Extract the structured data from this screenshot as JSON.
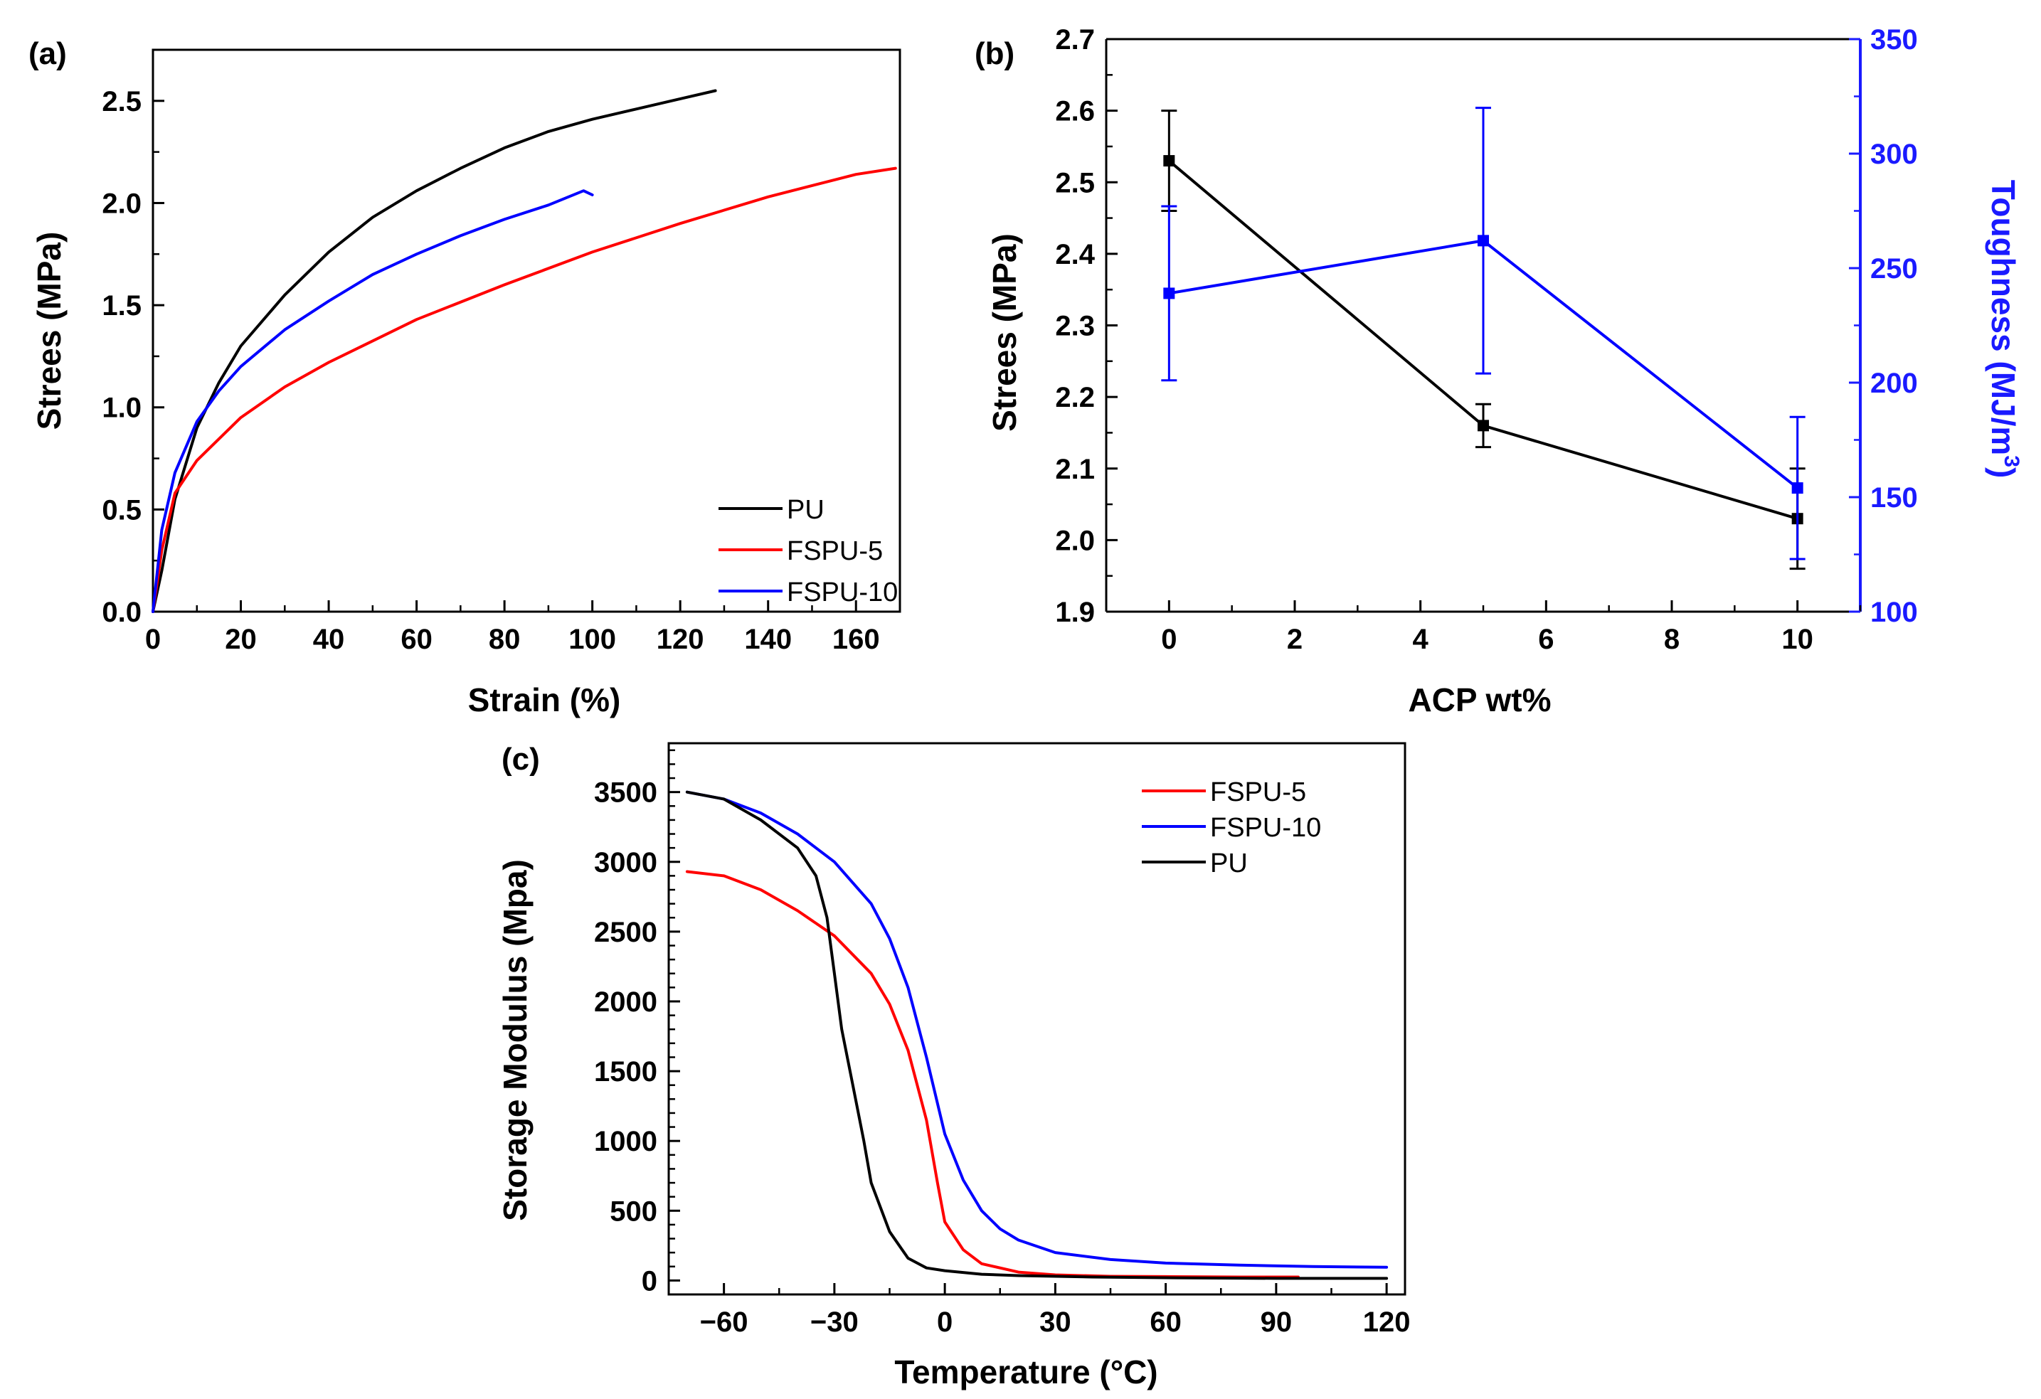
{
  "colors": {
    "pu": "#000000",
    "fspu5": "#ff0000",
    "fspu10": "#0000ff",
    "axis": "#000000",
    "accent_right": "#1a1aff"
  },
  "chart_data": [
    {
      "panel": "(a)",
      "type": "line",
      "xlabel": "Strain (%)",
      "ylabel": "Strees (MPa)",
      "xlim": [
        0,
        170
      ],
      "ylim": [
        0,
        2.75
      ],
      "xticks": [
        0,
        20,
        40,
        60,
        80,
        100,
        120,
        140,
        160
      ],
      "yticks": [
        0.0,
        0.5,
        1.0,
        1.5,
        2.0,
        2.5
      ],
      "ytick_labels": [
        "0.0",
        "0.5",
        "1.0",
        "1.5",
        "2.0",
        "2.5"
      ],
      "legend_position": "bottom-right",
      "series": [
        {
          "name": "PU",
          "color": "#000000",
          "x": [
            0,
            2,
            5,
            10,
            15,
            20,
            30,
            40,
            50,
            60,
            70,
            80,
            90,
            100,
            110,
            120,
            128
          ],
          "y": [
            0,
            0.2,
            0.55,
            0.9,
            1.12,
            1.3,
            1.55,
            1.76,
            1.93,
            2.06,
            2.17,
            2.27,
            2.35,
            2.41,
            2.46,
            2.51,
            2.55
          ]
        },
        {
          "name": "FSPU-5",
          "color": "#ff0000",
          "x": [
            0,
            2,
            5,
            10,
            20,
            30,
            40,
            60,
            80,
            100,
            120,
            140,
            160,
            169
          ],
          "y": [
            0,
            0.3,
            0.58,
            0.74,
            0.95,
            1.1,
            1.22,
            1.43,
            1.6,
            1.76,
            1.9,
            2.03,
            2.14,
            2.17
          ]
        },
        {
          "name": "FSPU-10",
          "color": "#0000ff",
          "x": [
            0,
            2,
            5,
            10,
            15,
            20,
            30,
            40,
            50,
            60,
            70,
            80,
            90,
            98,
            100
          ],
          "y": [
            0,
            0.4,
            0.68,
            0.93,
            1.08,
            1.2,
            1.38,
            1.52,
            1.65,
            1.75,
            1.84,
            1.92,
            1.99,
            2.06,
            2.04
          ]
        }
      ],
      "legend": [
        "PU",
        "FSPU-5",
        "FSPU-10"
      ]
    },
    {
      "panel": "(b)",
      "type": "line",
      "xlabel": "ACP wt%",
      "ylabel": "Strees (MPa)",
      "ylabel_right": "Toughness (MJ/m",
      "ylabel_right_sup": "3",
      "ylabel_right_end": ")",
      "xlim": [
        -1,
        11
      ],
      "ylim": [
        1.9,
        2.7
      ],
      "ylim_right": [
        100,
        350
      ],
      "xticks": [
        0,
        2,
        4,
        6,
        8,
        10
      ],
      "yticks": [
        1.9,
        2.0,
        2.1,
        2.2,
        2.3,
        2.4,
        2.5,
        2.6,
        2.7
      ],
      "ytick_labels": [
        "1.9",
        "2.0",
        "2.1",
        "2.2",
        "2.3",
        "2.4",
        "2.5",
        "2.6",
        "2.7"
      ],
      "yticks_right": [
        100,
        150,
        200,
        250,
        300,
        350
      ],
      "series": [
        {
          "name": "Strees",
          "axis": "left",
          "color": "#000000",
          "x": [
            0,
            5,
            10
          ],
          "y": [
            2.53,
            2.16,
            2.03
          ],
          "err": [
            0.07,
            0.03,
            0.07
          ]
        },
        {
          "name": "Toughness",
          "axis": "right",
          "color": "#0000ff",
          "x": [
            0,
            5,
            10
          ],
          "y": [
            239,
            262,
            154
          ],
          "err": [
            38,
            58,
            31
          ]
        }
      ]
    },
    {
      "panel": "(c)",
      "type": "line",
      "xlabel": "Temperature (°C)",
      "ylabel": "Storage Modulus (Mpa)",
      "xlim": [
        -75,
        125
      ],
      "ylim": [
        -100,
        3850
      ],
      "xticks": [
        -60,
        -30,
        0,
        30,
        60,
        90,
        120
      ],
      "yticks": [
        0,
        500,
        1000,
        1500,
        2000,
        2500,
        3000,
        3500
      ],
      "legend_position": "top-right",
      "series": [
        {
          "name": "FSPU-5",
          "color": "#ff0000",
          "x": [
            -70,
            -60,
            -50,
            -40,
            -30,
            -20,
            -15,
            -10,
            -5,
            -2,
            0,
            5,
            10,
            20,
            30,
            45,
            60,
            80,
            96
          ],
          "y": [
            2930,
            2900,
            2800,
            2650,
            2470,
            2200,
            1980,
            1650,
            1150,
            700,
            420,
            220,
            120,
            60,
            40,
            30,
            28,
            25,
            25
          ]
        },
        {
          "name": "FSPU-10",
          "color": "#0000ff",
          "x": [
            -70,
            -60,
            -50,
            -40,
            -30,
            -20,
            -15,
            -10,
            -5,
            0,
            5,
            10,
            15,
            20,
            30,
            45,
            60,
            80,
            100,
            120
          ],
          "y": [
            3500,
            3450,
            3350,
            3200,
            3000,
            2700,
            2450,
            2100,
            1600,
            1050,
            720,
            500,
            370,
            290,
            200,
            150,
            125,
            110,
            100,
            95
          ]
        },
        {
          "name": "PU",
          "color": "#000000",
          "x": [
            -70,
            -60,
            -50,
            -40,
            -35,
            -32,
            -30,
            -28,
            -25,
            -22,
            -20,
            -15,
            -10,
            -5,
            0,
            10,
            20,
            40,
            60,
            90,
            120
          ],
          "y": [
            3500,
            3450,
            3300,
            3100,
            2900,
            2600,
            2200,
            1800,
            1400,
            1000,
            700,
            350,
            160,
            90,
            70,
            45,
            35,
            25,
            20,
            15,
            15
          ]
        }
      ],
      "legend": [
        "FSPU-5",
        "FSPU-10",
        "PU"
      ]
    }
  ]
}
